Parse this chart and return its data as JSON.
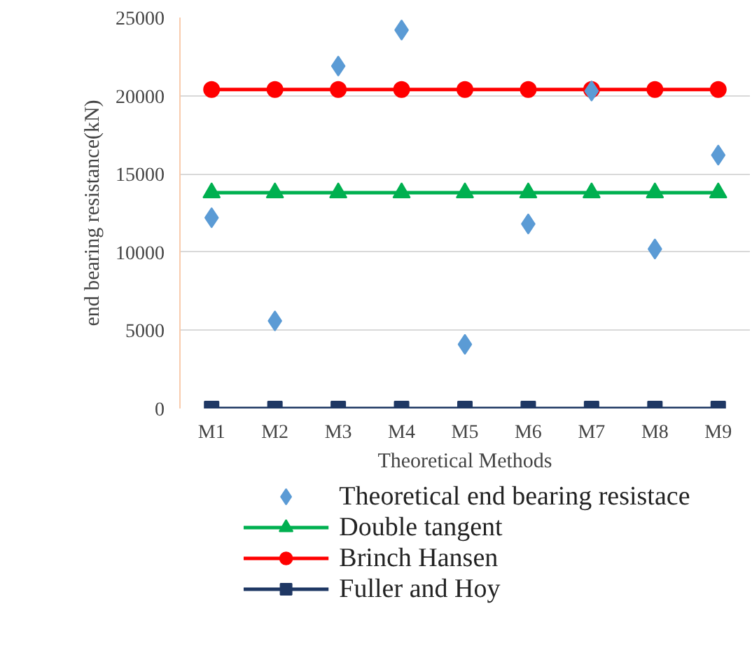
{
  "chart_data": {
    "type": "line",
    "xlabel": "Theoretical Methods",
    "ylabel": "end bearing resistance(kN)",
    "categories": [
      "M1",
      "M2",
      "M3",
      "M4",
      "M5",
      "M6",
      "M7",
      "M8",
      "M9"
    ],
    "series": [
      {
        "name": "Theoretical end bearing resistace",
        "type": "scatter",
        "marker": "diamond",
        "color": "#5b9bd5",
        "values": [
          12200,
          5600,
          21900,
          24200,
          4100,
          11800,
          20300,
          10200,
          16200
        ]
      },
      {
        "name": "Double tangent",
        "marker": "triangle",
        "color": "#00b050",
        "values": [
          13800,
          13800,
          13800,
          13800,
          13800,
          13800,
          13800,
          13800,
          13800
        ]
      },
      {
        "name": "Brinch Hansen",
        "marker": "circle",
        "color": "#ff0000",
        "values": [
          20400,
          20400,
          20400,
          20400,
          20400,
          20400,
          20400,
          20400,
          20400
        ]
      },
      {
        "name": "Fuller and Hoy",
        "marker": "square",
        "color": "#1f3864",
        "values": [
          0,
          0,
          0,
          0,
          0,
          0,
          0,
          0,
          0
        ]
      }
    ],
    "ylim": [
      0,
      25000
    ],
    "yticks": [
      0,
      5000,
      10000,
      15000,
      20000,
      25000
    ],
    "grid": "y",
    "legend": "bottom"
  }
}
